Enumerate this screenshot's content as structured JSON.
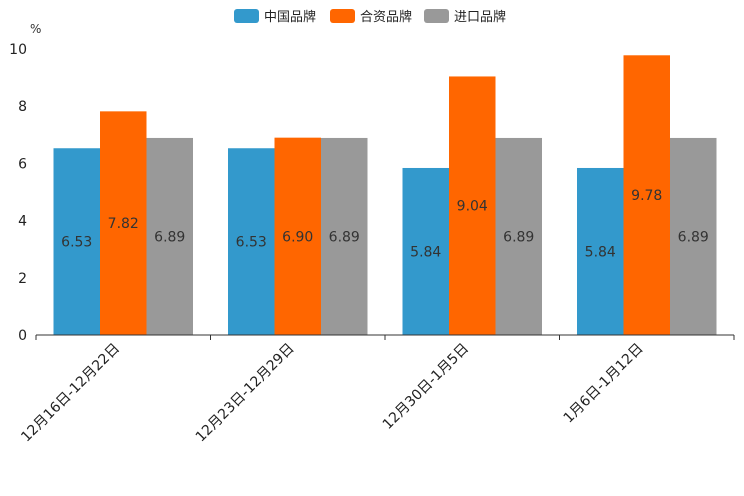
{
  "chart_data": {
    "type": "bar",
    "title": "",
    "unit_label": "%",
    "xlabel": "",
    "ylabel": "%",
    "ylim": [
      0,
      10
    ],
    "yticks": [
      0,
      2,
      4,
      6,
      8,
      10
    ],
    "legend_position": "top-center",
    "grid": false,
    "categories": [
      "12月16日-12月22日",
      "12月23日-12月29日",
      "12月30日-1月5日",
      "1月6日-1月12日"
    ],
    "series": [
      {
        "name": "中国品牌",
        "color": "#3399cc",
        "values": [
          6.53,
          6.53,
          5.84,
          5.84
        ],
        "labels": [
          "6.53",
          "6.53",
          "5.84",
          "5.84"
        ]
      },
      {
        "name": "合资品牌",
        "color": "#ff6600",
        "values": [
          7.82,
          6.9,
          9.04,
          9.78
        ],
        "labels": [
          "7.82",
          "6.90",
          "9.04",
          "9.78"
        ]
      },
      {
        "name": "进口品牌",
        "color": "#999999",
        "values": [
          6.89,
          6.89,
          6.89,
          6.89
        ],
        "labels": [
          "6.89",
          "6.89",
          "6.89",
          "6.89"
        ]
      }
    ]
  }
}
